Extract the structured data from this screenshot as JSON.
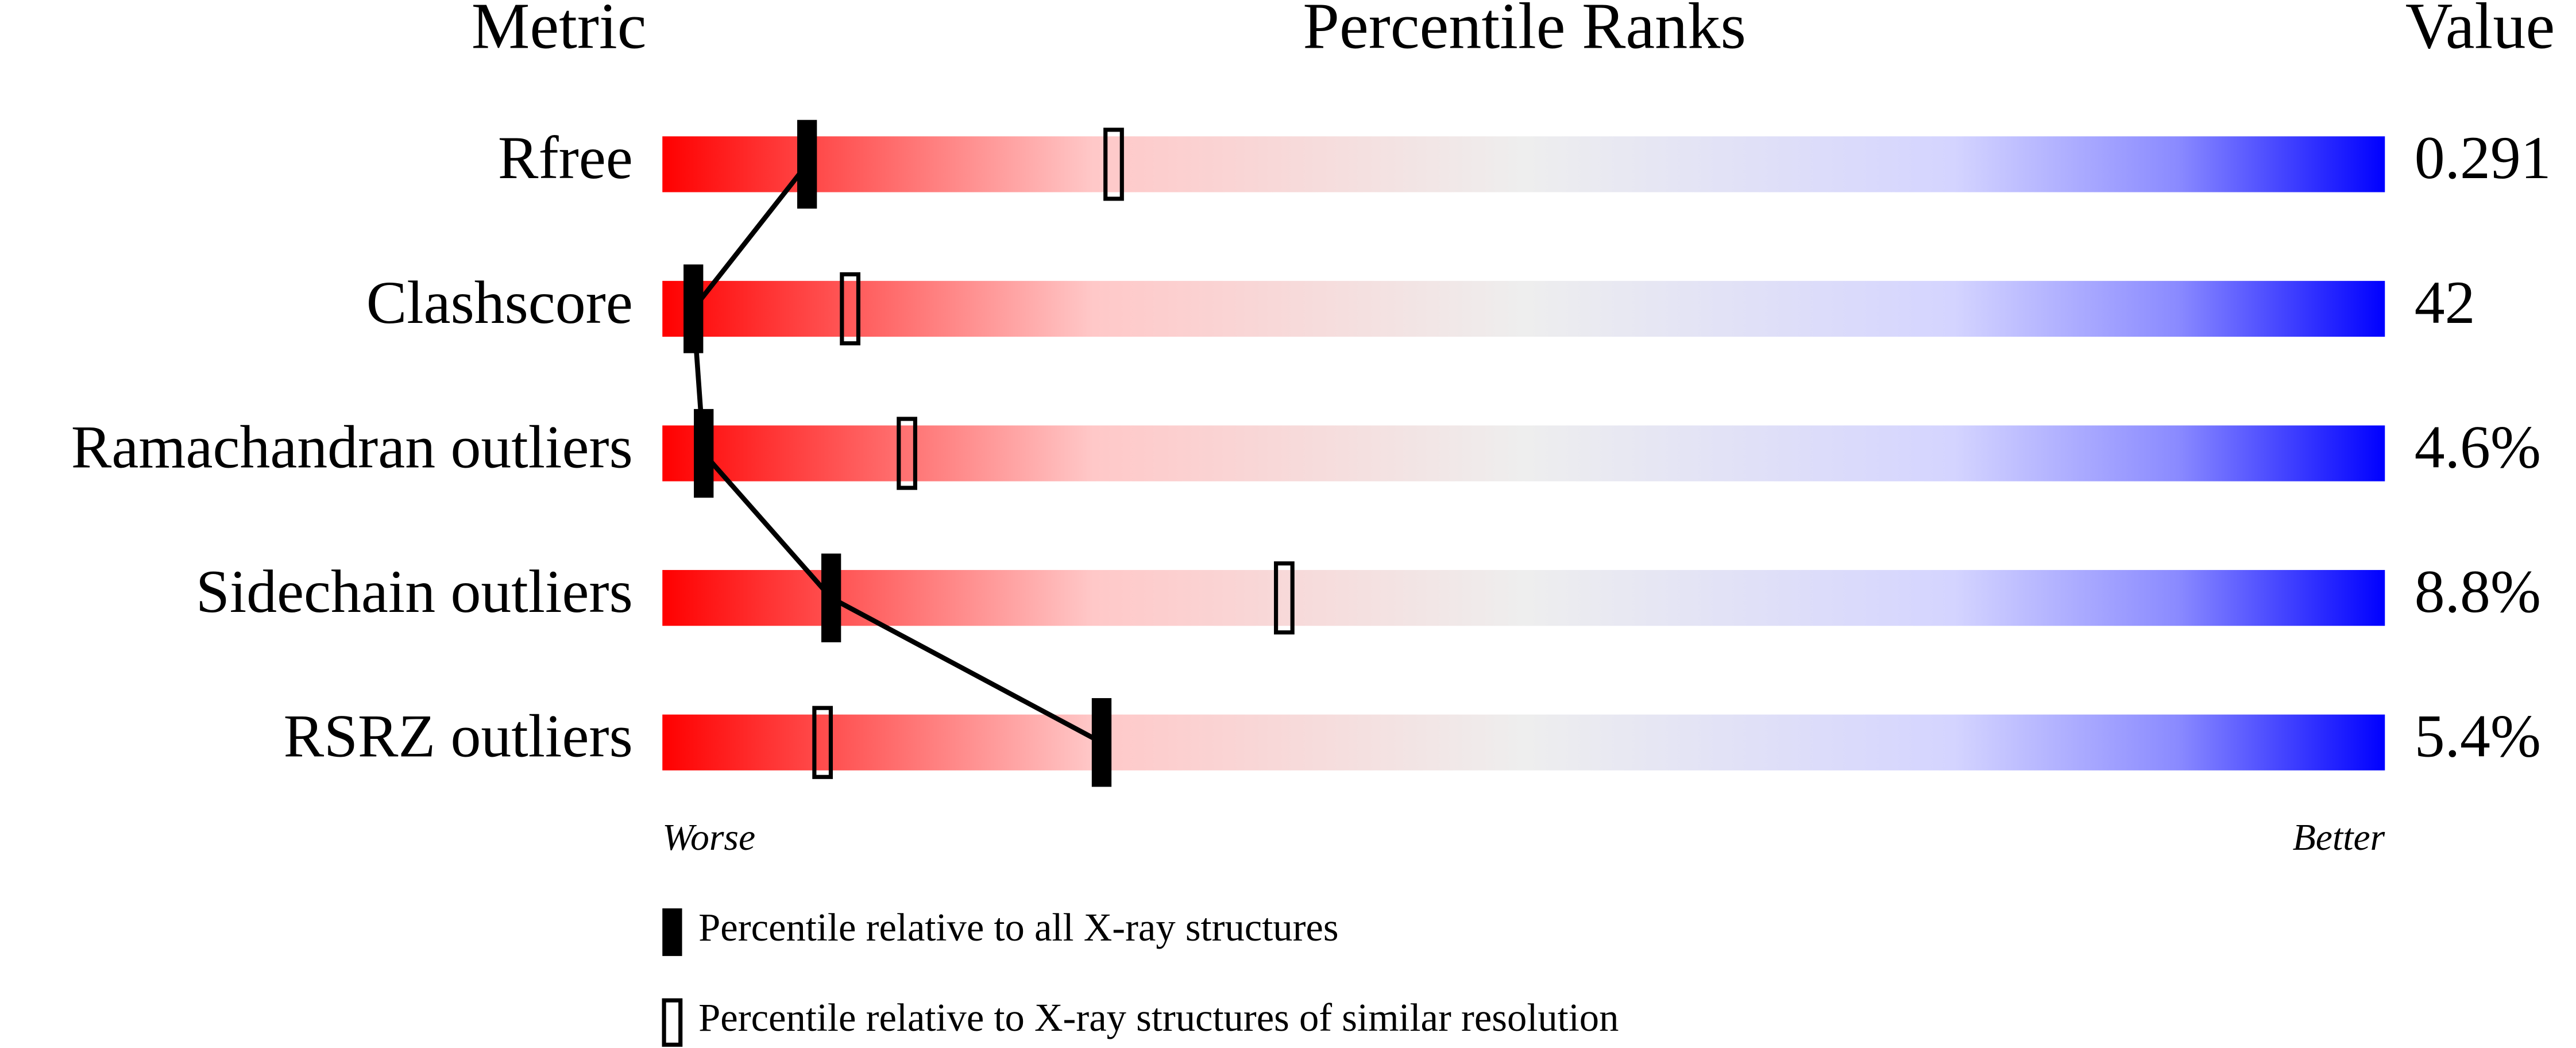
{
  "chart_data": {
    "type": "percentile-slider",
    "title": "Percentile Ranks",
    "metric_header": "Metric",
    "value_header": "Value",
    "categories": [
      "Rfree",
      "Clashscore",
      "Ramachandran outliers",
      "Sidechain outliers",
      "RSRZ outliers"
    ],
    "values": [
      0.291,
      42,
      4.6,
      8.8,
      5.4
    ],
    "value_labels": [
      "0.291",
      "42",
      "4.6%",
      "8.8%",
      "5.4%"
    ],
    "xlim": [
      0,
      100
    ],
    "worse_label": "Worse",
    "better_label": "Better",
    "series": [
      {
        "name": "Percentile relative to all X-ray structures",
        "color": "#000000",
        "style": "filled",
        "connected": true,
        "values": [
          8.4,
          1.8,
          2.4,
          9.8,
          25.5
        ]
      },
      {
        "name": "Percentile relative to X-ray structures of similar resolution",
        "color": "#000000",
        "style": "hollow",
        "connected": false,
        "values": [
          26.2,
          10.9,
          14.2,
          36.1,
          9.3
        ]
      }
    ]
  }
}
